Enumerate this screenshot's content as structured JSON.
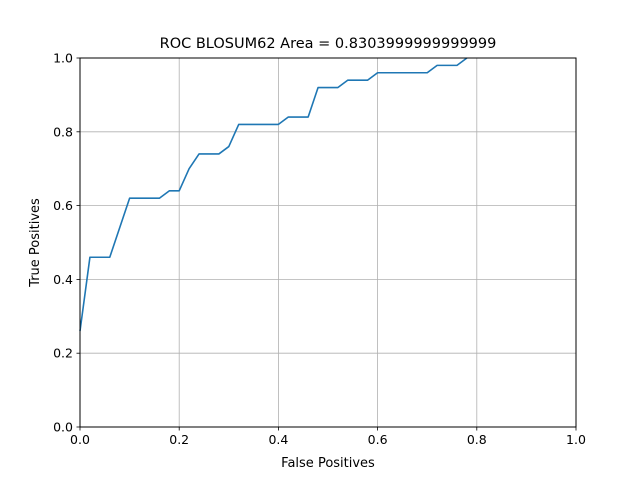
{
  "chart_data": {
    "type": "line",
    "title": "ROC BLOSUM62 Area = 0.8303999999999999",
    "xlabel": "False Positives",
    "ylabel": "True Positives",
    "xlim": [
      0.0,
      1.0
    ],
    "ylim": [
      0.0,
      1.0
    ],
    "grid": true,
    "xticks": [
      "0.0",
      "0.2",
      "0.4",
      "0.6",
      "0.8",
      "1.0"
    ],
    "yticks": [
      "0.0",
      "0.2",
      "0.4",
      "0.6",
      "0.8",
      "1.0"
    ],
    "series": [
      {
        "color": "#1f77b4",
        "x": [
          0.0,
          0.02,
          0.06,
          0.1,
          0.16,
          0.18,
          0.2,
          0.22,
          0.24,
          0.28,
          0.3,
          0.32,
          0.4,
          0.42,
          0.46,
          0.48,
          0.52,
          0.54,
          0.58,
          0.6,
          0.7,
          0.72,
          0.76,
          0.78
        ],
        "y": [
          0.26,
          0.46,
          0.46,
          0.62,
          0.62,
          0.64,
          0.64,
          0.7,
          0.74,
          0.74,
          0.76,
          0.82,
          0.82,
          0.84,
          0.84,
          0.92,
          0.92,
          0.94,
          0.94,
          0.96,
          0.96,
          0.98,
          0.98,
          1.0
        ]
      }
    ]
  }
}
